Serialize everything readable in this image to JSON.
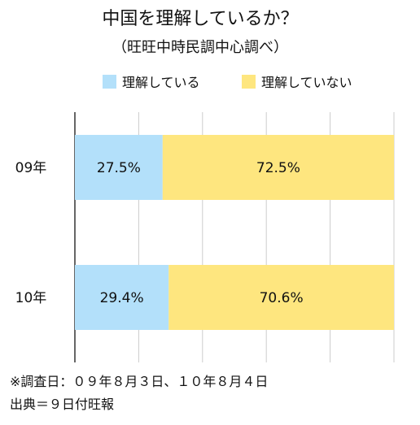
{
  "chart_data": {
    "type": "bar",
    "orientation": "horizontal",
    "stacked": true,
    "title": "中国を理解しているか？",
    "subtitle": "（旺旺中時民調中心調べ）",
    "categories": [
      "09年",
      "10年"
    ],
    "series": [
      {
        "name": "理解している",
        "color": "#b3e0fa",
        "values": [
          27.5,
          29.4
        ],
        "labels": [
          "27.5%",
          "29.4%"
        ]
      },
      {
        "name": "理解していない",
        "color": "#fee67f",
        "values": [
          72.5,
          70.6
        ],
        "labels": [
          "72.5%",
          "70.6%"
        ]
      }
    ],
    "xlim": [
      0,
      100
    ],
    "grid": true,
    "legend": "top",
    "notes": [
      "※調査日：０９年８月３日、１０年８月４日",
      "出典＝９日付旺報"
    ]
  }
}
